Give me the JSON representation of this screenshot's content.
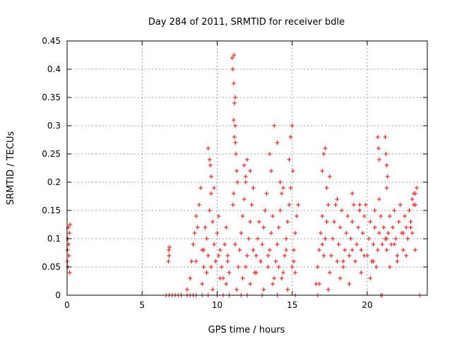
{
  "chart_data": {
    "type": "scatter",
    "title": "Day 284 of 2011, SRMTID for receiver bdle",
    "xlabel": "GPS time / hours",
    "ylabel": "SRMTID / TECUs",
    "xlim": [
      0,
      24
    ],
    "ylim": [
      0,
      0.45
    ],
    "xticks": [
      0,
      5,
      10,
      15,
      20
    ],
    "xtick_labels": [
      "0",
      "5",
      "10",
      "15",
      "20"
    ],
    "yticks": [
      0,
      0.05,
      0.1,
      0.15,
      0.2,
      0.25,
      0.3,
      0.35,
      0.4,
      0.45
    ],
    "ytick_labels": [
      "0",
      "0.05",
      "0.1",
      "0.15",
      "0.2",
      "0.25",
      "0.3",
      "0.35",
      "0.4",
      "0.45"
    ],
    "grid": true,
    "marker": "+",
    "series": [
      {
        "name": "SRMTID",
        "color": "#ff0000",
        "x": [
          0.02,
          0.03,
          0.05,
          0.06,
          0.08,
          0.1,
          0.12,
          0.15,
          0.17,
          0.2,
          6.75,
          6.78,
          6.8,
          6.82,
          8.0,
          8.2,
          8.3,
          8.4,
          8.5,
          8.6,
          8.7,
          8.8,
          8.9,
          9.0,
          9.1,
          9.2,
          9.3,
          9.4,
          9.5,
          9.6,
          9.7,
          9.8,
          9.9,
          10.0,
          10.1,
          10.2,
          10.3,
          10.4,
          10.5,
          10.6,
          10.7,
          10.8,
          9.4,
          9.6,
          9.8,
          9.5,
          9.55,
          11.0,
          11.05,
          11.1,
          11.15,
          11.2,
          11.22,
          11.25,
          11.3,
          11.35,
          11.1,
          11.15,
          11.2,
          11.1,
          11.05,
          11.12,
          11.4,
          11.5,
          11.6,
          11.7,
          11.8,
          11.9,
          12.0,
          12.1,
          12.2,
          12.3,
          12.4,
          12.5,
          12.6,
          12.7,
          12.8,
          12.9,
          13.0,
          13.1,
          13.2,
          13.3,
          13.4,
          13.5,
          13.6,
          13.7,
          13.8,
          13.9,
          14.0,
          14.1,
          14.2,
          14.3,
          14.4,
          14.5,
          14.6,
          14.7,
          14.8,
          14.9,
          15.0,
          15.1,
          15.2,
          15.3,
          15.4,
          13.5,
          13.6,
          13.8,
          14.0,
          14.2,
          14.4,
          14.8,
          14.9,
          15.0,
          15.05,
          12.0,
          12.2,
          11.8,
          11.9,
          16.6,
          16.7,
          16.8,
          16.9,
          17.0,
          17.1,
          17.2,
          17.3,
          17.4,
          17.5,
          17.6,
          17.7,
          17.8,
          17.9,
          18.0,
          18.1,
          18.2,
          18.3,
          18.4,
          18.5,
          18.6,
          18.7,
          18.8,
          18.9,
          19.0,
          19.1,
          19.2,
          19.3,
          19.4,
          19.5,
          19.6,
          19.7,
          19.8,
          19.9,
          20.0,
          20.1,
          20.2,
          20.3,
          20.4,
          20.5,
          20.6,
          20.7,
          20.8,
          20.9,
          17.0,
          17.1,
          17.2,
          17.3,
          17.5,
          18.0,
          19.0,
          19.5,
          20.5,
          20.8,
          21.0,
          21.1,
          21.2,
          21.3,
          21.4,
          21.5,
          21.6,
          21.7,
          21.8,
          21.9,
          22.0,
          22.1,
          22.2,
          22.3,
          22.4,
          22.5,
          22.6,
          22.7,
          22.8,
          22.9,
          23.0,
          23.1,
          23.2,
          23.3,
          20.7,
          20.75,
          20.8,
          21.2,
          21.25,
          21.3,
          21.35,
          21.3,
          23.0,
          23.1,
          23.2,
          9.0,
          9.3,
          9.7,
          10.2,
          10.6,
          11.3,
          11.7,
          12.2,
          12.6,
          13.1,
          13.7,
          14.3,
          14.7,
          15.2,
          16.8,
          17.4,
          18.2,
          18.8,
          19.6,
          20.2,
          21.5,
          22.0,
          22.6,
          23.2,
          8.6,
          9.1,
          9.6,
          10.1,
          10.7,
          11.2,
          11.9,
          12.4,
          12.9,
          13.4,
          14.1,
          14.6,
          15.1,
          17.0,
          17.6,
          18.4,
          19.0,
          19.8,
          20.4,
          21.3,
          21.8,
          22.4,
          22.9,
          6.6,
          6.8,
          7.0,
          7.2,
          7.4,
          7.6,
          8.0,
          8.2,
          8.4,
          8.6,
          9.0,
          9.4,
          10.0,
          10.4,
          10.8,
          11.6,
          12.0,
          13.0,
          14.0,
          15.2,
          16.7,
          20.9,
          21.0,
          23.5
        ],
        "y": [
          0.06,
          0.08,
          0.1,
          0.05,
          0.12,
          0.09,
          0.07,
          0.11,
          0.04,
          0.125,
          0.06,
          0.08,
          0.07,
          0.085,
          0.01,
          0.03,
          0.06,
          0.09,
          0.11,
          0.14,
          0.12,
          0.16,
          0.19,
          0.08,
          0.05,
          0.12,
          0.1,
          0.07,
          0.15,
          0.18,
          0.13,
          0.09,
          0.06,
          0.11,
          0.14,
          0.08,
          0.05,
          0.03,
          0.09,
          0.12,
          0.07,
          0.04,
          0.26,
          0.21,
          0.19,
          0.24,
          0.23,
          0.42,
          0.4,
          0.375,
          0.34,
          0.3,
          0.27,
          0.25,
          0.22,
          0.2,
          0.31,
          0.28,
          0.35,
          0.18,
          0.16,
          0.425,
          0.05,
          0.08,
          0.11,
          0.14,
          0.17,
          0.2,
          0.07,
          0.1,
          0.13,
          0.16,
          0.19,
          0.04,
          0.07,
          0.1,
          0.13,
          0.06,
          0.09,
          0.12,
          0.15,
          0.18,
          0.05,
          0.08,
          0.11,
          0.14,
          0.03,
          0.06,
          0.09,
          0.12,
          0.15,
          0.18,
          0.04,
          0.07,
          0.1,
          0.13,
          0.16,
          0.19,
          0.05,
          0.08,
          0.11,
          0.14,
          0.16,
          0.25,
          0.22,
          0.3,
          0.27,
          0.2,
          0.19,
          0.24,
          0.28,
          0.3,
          0.22,
          0.24,
          0.22,
          0.23,
          0.21,
          0.02,
          0.05,
          0.08,
          0.11,
          0.14,
          0.07,
          0.1,
          0.13,
          0.16,
          0.04,
          0.07,
          0.1,
          0.13,
          0.16,
          0.06,
          0.09,
          0.12,
          0.15,
          0.05,
          0.08,
          0.11,
          0.14,
          0.07,
          0.1,
          0.13,
          0.16,
          0.06,
          0.09,
          0.12,
          0.15,
          0.08,
          0.11,
          0.14,
          0.16,
          0.07,
          0.1,
          0.13,
          0.06,
          0.09,
          0.12,
          0.05,
          0.08,
          0.11,
          0.14,
          0.22,
          0.25,
          0.26,
          0.19,
          0.21,
          0.17,
          0.18,
          0.16,
          0.15,
          0.17,
          0.09,
          0.12,
          0.1,
          0.08,
          0.11,
          0.14,
          0.09,
          0.12,
          0.15,
          0.1,
          0.07,
          0.13,
          0.16,
          0.11,
          0.08,
          0.14,
          0.12,
          0.1,
          0.15,
          0.13,
          0.11,
          0.16,
          0.18,
          0.19,
          0.28,
          0.26,
          0.24,
          0.28,
          0.25,
          0.23,
          0.21,
          0.19,
          0.17,
          0.18,
          0.16,
          0.02,
          0.04,
          0.01,
          0.03,
          0.02,
          0.01,
          0.03,
          0.02,
          0.04,
          0.01,
          0.02,
          0.03,
          0.01,
          0.04,
          0.02,
          0.01,
          0.03,
          0.02,
          0.04,
          0.03,
          0.05,
          0.06,
          0.07,
          0.08,
          0.06,
          0.08,
          0.05,
          0.07,
          0.06,
          0.09,
          0.05,
          0.08,
          0.06,
          0.07,
          0.05,
          0.08,
          0.06,
          0.09,
          0.07,
          0.06,
          0.08,
          0.07,
          0.06,
          0.1,
          0.09,
          0.11,
          0.12,
          0,
          0,
          0,
          0,
          0,
          0,
          0,
          0,
          0,
          0,
          0,
          0,
          0,
          0,
          0,
          0,
          0,
          0,
          0,
          0,
          0,
          0,
          0,
          0
        ]
      }
    ]
  }
}
